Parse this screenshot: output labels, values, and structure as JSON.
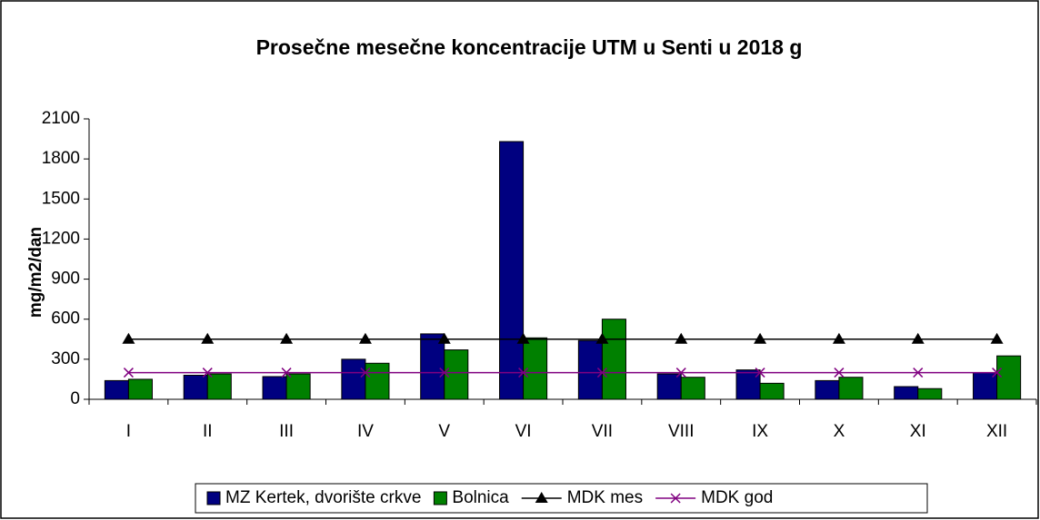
{
  "chart_data": {
    "type": "bar",
    "title": "Prosečne mesečne koncentracije UTM u Senti u 2018 g",
    "y_label": "mg/m2/dan",
    "categories": [
      "I",
      "II",
      "III",
      "IV",
      "V",
      "VI",
      "VII",
      "VIII",
      "IX",
      "X",
      "XI",
      "XII"
    ],
    "series": [
      {
        "name": "MZ Kertek, dvorište crkve",
        "type": "bar",
        "color": "#000080",
        "values": [
          140,
          180,
          170,
          300,
          490,
          1930,
          440,
          190,
          220,
          140,
          95,
          200
        ]
      },
      {
        "name": "Bolnica",
        "type": "bar",
        "color": "#008000",
        "values": [
          150,
          190,
          190,
          270,
          370,
          460,
          600,
          165,
          120,
          165,
          80,
          325
        ]
      },
      {
        "name": "MDK mes",
        "type": "line",
        "marker": "triangle",
        "color": "#000000",
        "values": [
          450,
          450,
          450,
          450,
          450,
          450,
          450,
          450,
          450,
          450,
          450,
          450
        ]
      },
      {
        "name": "MDK god",
        "type": "line",
        "marker": "x",
        "color": "#800080",
        "values": [
          200,
          200,
          200,
          200,
          200,
          200,
          200,
          200,
          200,
          200,
          200,
          200
        ]
      }
    ],
    "ylim": [
      0,
      2100
    ],
    "yticks": [
      0,
      300,
      600,
      900,
      1200,
      1500,
      1800,
      2100
    ],
    "grid": false,
    "legend": "bottom"
  }
}
